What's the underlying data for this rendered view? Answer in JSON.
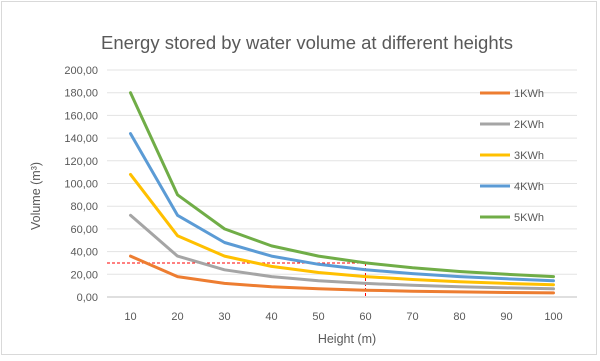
{
  "chart_data": {
    "type": "line",
    "title": "Energy stored by water volume at different heights",
    "xlabel": "Height (m)",
    "ylabel": "Volume (m³)",
    "x": [
      10,
      20,
      30,
      40,
      50,
      60,
      70,
      80,
      90,
      100
    ],
    "x_tick_labels": [
      "10",
      "20",
      "30",
      "40",
      "50",
      "60",
      "70",
      "80",
      "90",
      "100"
    ],
    "ylim": [
      0,
      200
    ],
    "y_tick_labels": [
      "0,00",
      "20,00",
      "40,00",
      "60,00",
      "80,00",
      "100,00",
      "120,00",
      "140,00",
      "160,00",
      "180,00",
      "200,00"
    ],
    "grid": "horizontal",
    "legend_position": "right",
    "series": [
      {
        "name": "1KWh",
        "color": "#ed7d31",
        "values": [
          36,
          18,
          12,
          9,
          7.2,
          6,
          5.1,
          4.5,
          4,
          3.6
        ]
      },
      {
        "name": "2KWh",
        "color": "#a5a5a5",
        "values": [
          72,
          36,
          24,
          18,
          14.4,
          12,
          10.3,
          9,
          8,
          7.2
        ]
      },
      {
        "name": "3KWh",
        "color": "#ffc000",
        "values": [
          108,
          54,
          36,
          27,
          21.6,
          18,
          15.4,
          13.5,
          12,
          10.8
        ]
      },
      {
        "name": "4KWh",
        "color": "#5b9bd5",
        "values": [
          144,
          72,
          48,
          36,
          28.8,
          24,
          20.6,
          18,
          16,
          14.4
        ]
      },
      {
        "name": "5KWh",
        "color": "#70ad47",
        "values": [
          180,
          90,
          60,
          45,
          36,
          30,
          25.7,
          22.5,
          20,
          18
        ]
      }
    ],
    "reference_lines": {
      "color": "#ff0000",
      "style": "dashed",
      "x": 60,
      "y": 30
    }
  }
}
